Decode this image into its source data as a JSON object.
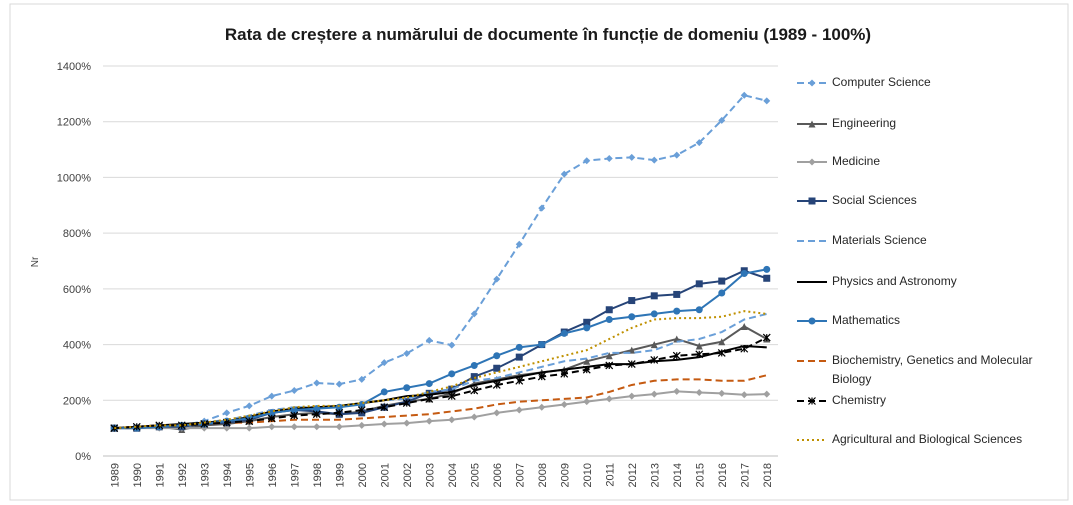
{
  "chart_data": {
    "type": "line",
    "title": "Rata de creștere a numărului de documente în funcție de domeniu (1989 - 100%)",
    "ylabel": "Nr",
    "categories": [
      "1989",
      "1990",
      "1991",
      "1992",
      "1993",
      "1994",
      "1995",
      "1996",
      "1997",
      "1998",
      "1999",
      "2000",
      "2001",
      "2002",
      "2003",
      "2004",
      "2005",
      "2006",
      "2007",
      "2008",
      "2009",
      "2010",
      "2011",
      "2012",
      "2013",
      "2014",
      "2015",
      "2016",
      "2017",
      "2018"
    ],
    "ylim": [
      0,
      1400
    ],
    "yticks": [
      {
        "value": 0,
        "label": "0%"
      },
      {
        "value": 200,
        "label": "200%"
      },
      {
        "value": 400,
        "label": "400%"
      },
      {
        "value": 600,
        "label": "600%"
      },
      {
        "value": 800,
        "label": "800%"
      },
      {
        "value": 1000,
        "label": "1000%"
      },
      {
        "value": 1200,
        "label": "1200%"
      },
      {
        "value": 1400,
        "label": "1400%"
      }
    ],
    "grid": true,
    "legend": "right",
    "series": [
      {
        "name": "Computer Science",
        "color": "#6a9fd8",
        "dash": "dashed",
        "marker": "diamond",
        "values": [
          100,
          100,
          105,
          110,
          125,
          155,
          180,
          215,
          235,
          262,
          258,
          275,
          335,
          368,
          415,
          398,
          510,
          635,
          760,
          890,
          1012,
          1060,
          1068,
          1072,
          1062,
          1080,
          1125,
          1205,
          1295,
          1275
        ]
      },
      {
        "name": "Engineering",
        "color": "#595959",
        "dash": "solid",
        "marker": "triangle",
        "values": [
          100,
          100,
          105,
          95,
          110,
          115,
          125,
          140,
          150,
          155,
          150,
          160,
          180,
          195,
          205,
          225,
          260,
          275,
          290,
          300,
          310,
          340,
          360,
          380,
          400,
          420,
          395,
          410,
          465,
          420
        ]
      },
      {
        "name": "Medicine",
        "color": "#a0a0a0",
        "dash": "solid",
        "marker": "diamond",
        "values": [
          100,
          100,
          100,
          100,
          100,
          100,
          100,
          105,
          105,
          105,
          105,
          110,
          115,
          118,
          125,
          130,
          140,
          155,
          165,
          175,
          185,
          195,
          205,
          215,
          222,
          232,
          228,
          225,
          220,
          222
        ]
      },
      {
        "name": "Social Sciences",
        "color": "#264478",
        "dash": "solid",
        "marker": "square",
        "values": [
          100,
          100,
          105,
          105,
          115,
          120,
          130,
          155,
          165,
          160,
          150,
          155,
          175,
          195,
          225,
          240,
          285,
          315,
          355,
          400,
          445,
          480,
          525,
          558,
          575,
          580,
          618,
          628,
          665,
          638
        ]
      },
      {
        "name": "Materials Science",
        "color": "#6a9fd8",
        "dash": "dashed",
        "marker": "none",
        "values": [
          100,
          105,
          110,
          110,
          120,
          130,
          145,
          165,
          175,
          175,
          180,
          190,
          200,
          205,
          230,
          240,
          270,
          280,
          300,
          320,
          340,
          350,
          370,
          370,
          380,
          410,
          420,
          445,
          490,
          510
        ]
      },
      {
        "name": "Physics and Astronomy",
        "color": "#000000",
        "dash": "solid",
        "marker": "none",
        "values": [
          100,
          105,
          110,
          115,
          120,
          125,
          140,
          160,
          170,
          175,
          180,
          190,
          200,
          215,
          220,
          230,
          255,
          270,
          285,
          300,
          310,
          320,
          330,
          330,
          340,
          345,
          355,
          375,
          395,
          390
        ]
      },
      {
        "name": "Mathematics",
        "color": "#2e75b6",
        "dash": "solid",
        "marker": "circle",
        "values": [
          100,
          100,
          105,
          110,
          115,
          125,
          135,
          155,
          165,
          170,
          175,
          185,
          230,
          245,
          260,
          295,
          325,
          360,
          390,
          400,
          440,
          460,
          490,
          500,
          510,
          520,
          525,
          585,
          655,
          670
        ]
      },
      {
        "name": "Biochemistry, Genetics and Molecular Biology",
        "color": "#c55a11",
        "dash": "dashed",
        "marker": "none",
        "values": [
          100,
          105,
          110,
          110,
          115,
          120,
          120,
          125,
          130,
          130,
          130,
          135,
          140,
          145,
          150,
          160,
          170,
          185,
          195,
          200,
          205,
          210,
          230,
          255,
          270,
          275,
          275,
          270,
          270,
          290
        ]
      },
      {
        "name": "Chemistry",
        "color": "#000000",
        "dash": "dashed",
        "marker": "star",
        "values": [
          100,
          105,
          110,
          110,
          115,
          120,
          125,
          135,
          145,
          150,
          155,
          165,
          175,
          190,
          205,
          215,
          235,
          255,
          270,
          285,
          295,
          310,
          325,
          330,
          345,
          360,
          365,
          370,
          385,
          425
        ]
      },
      {
        "name": "Agricultural and Biological Sciences",
        "color": "#bf9000",
        "dash": "dotted",
        "marker": "none",
        "values": [
          100,
          105,
          110,
          110,
          120,
          130,
          145,
          160,
          175,
          180,
          180,
          190,
          200,
          210,
          230,
          250,
          280,
          300,
          320,
          340,
          360,
          380,
          420,
          460,
          490,
          495,
          495,
          500,
          520,
          510
        ]
      }
    ]
  }
}
